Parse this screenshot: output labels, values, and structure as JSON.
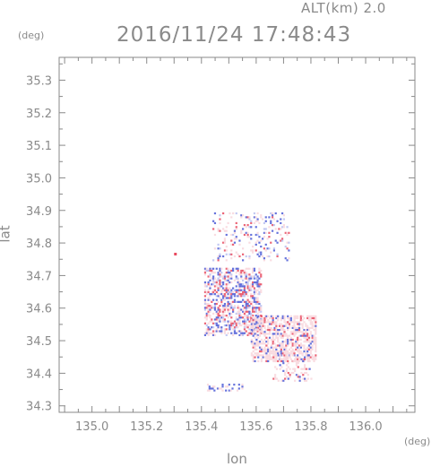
{
  "header": {
    "alt_label": "ALT(km) 2.0",
    "timestamp": "2016/11/24 17:48:43"
  },
  "axes": {
    "y_unit": "(deg)",
    "x_unit": "(deg)",
    "x_label": "lon",
    "y_label": "lat"
  },
  "chart_data": {
    "type": "heatmap",
    "title": "2016/11/24 17:48:43",
    "xlabel": "lon",
    "ylabel": "lat",
    "xlim": [
      134.88,
      136.18
    ],
    "ylim": [
      34.28,
      35.37
    ],
    "x_ticks": [
      "135.0",
      "135.2",
      "135.4",
      "135.6",
      "135.8",
      "136.0"
    ],
    "y_ticks": [
      "34.3",
      "34.4",
      "34.5",
      "34.6",
      "34.7",
      "34.8",
      "34.9",
      "35.0",
      "35.1",
      "35.2",
      "35.3"
    ],
    "grid": false,
    "colors": {
      "positive": "#e84a5f",
      "negative": "#4b5bd6",
      "weak": "#f8d6dc",
      "frame": "#8a8a8a"
    }
  }
}
